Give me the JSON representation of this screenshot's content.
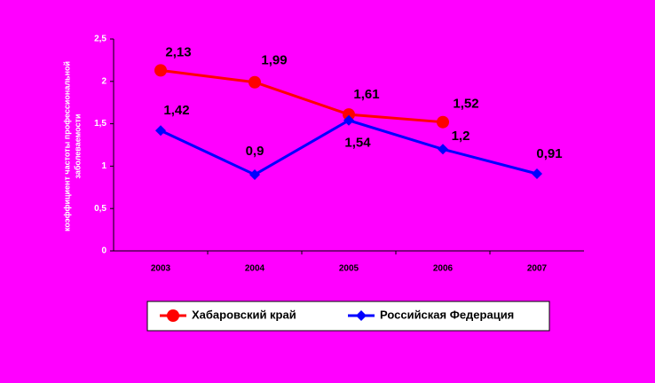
{
  "chart_data": {
    "type": "line",
    "y_label": [
      "коэффициент частоты профессиональной",
      "заболеваемости"
    ],
    "categories": [
      "2003",
      "2004",
      "2005",
      "2006",
      "2007"
    ],
    "ylim": [
      0,
      2.5
    ],
    "yticks": [
      0,
      {
        "value": 0.5,
        "label": "0,5"
      },
      1,
      {
        "value": 1.5,
        "label": "1,5"
      },
      2,
      {
        "value": 2.5,
        "label": "2,5"
      }
    ],
    "legend": "bottom",
    "series": [
      {
        "name": "Хабаровский край",
        "color": "#ff0000",
        "marker": "circle",
        "values": [
          2.13,
          1.99,
          1.61,
          1.52,
          null
        ],
        "value_labels": [
          "2,13",
          "1,99",
          "1,61",
          "1,52",
          null
        ]
      },
      {
        "name": "Российская Федерация",
        "color": "#0000ff",
        "marker": "diamond",
        "values": [
          1.42,
          0.9,
          1.54,
          1.2,
          0.91
        ],
        "value_labels": [
          "1,42",
          "0,9",
          "1,54",
          "1,2",
          "0,91"
        ]
      }
    ]
  }
}
